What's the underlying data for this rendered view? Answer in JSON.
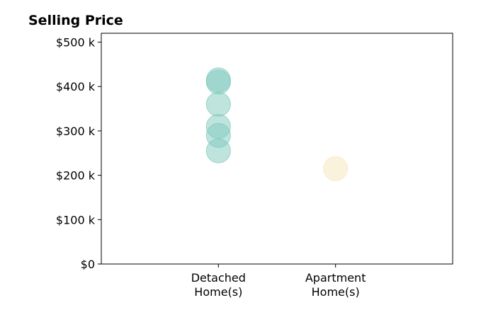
{
  "chart_data": {
    "type": "scatter",
    "title": "Selling Price",
    "categories": [
      "Detached\nHome(s)",
      "Apartment\nHome(s)"
    ],
    "series": [
      {
        "category": "Detached\nHome(s)",
        "color": "#7fc9bd",
        "values": [
          415000,
          410000,
          360000,
          310000,
          290000,
          255000
        ]
      },
      {
        "category": "Apartment\nHome(s)",
        "color": "#f7e5bd",
        "values": [
          215000
        ]
      }
    ],
    "yticks": [
      0,
      100000,
      200000,
      300000,
      400000,
      500000
    ],
    "ytick_labels": [
      "$0",
      "$100 k",
      "$200 k",
      "$300 k",
      "$400 k",
      "$500 k"
    ],
    "ylim": [
      0,
      520000
    ],
    "xlim": [
      -1,
      2
    ],
    "grid": false
  }
}
